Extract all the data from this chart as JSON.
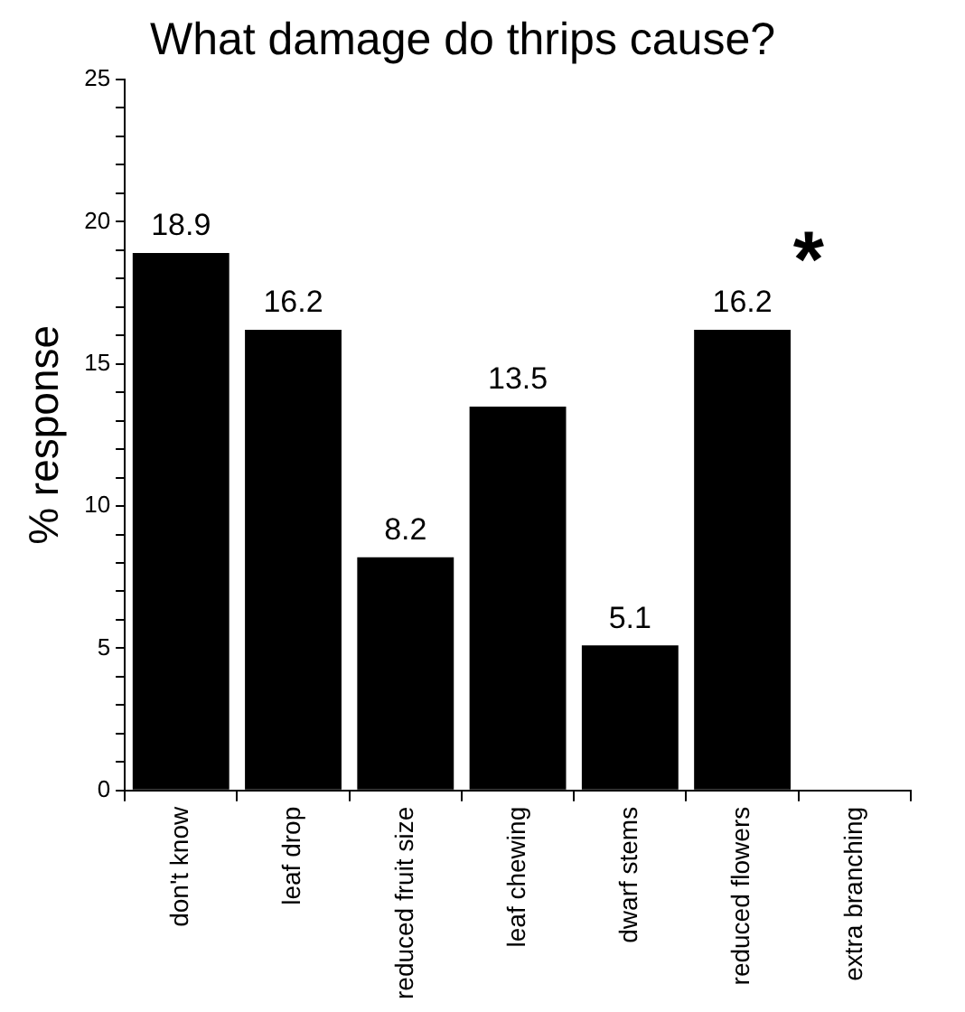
{
  "chart_data": {
    "type": "bar",
    "title": "What damage do thrips cause?",
    "ylabel": "% response",
    "categories": [
      "don't know",
      "leaf drop",
      "reduced fruit size",
      "leaf chewing",
      "dwarf stems",
      "reduced flowers",
      "extra branching"
    ],
    "values": [
      18.9,
      16.2,
      8.2,
      13.5,
      5.1,
      16.2,
      0
    ],
    "value_labels": [
      "18.9",
      "16.2",
      "8.2",
      "13.5",
      "5.1",
      "16.2",
      null
    ],
    "color": "#000000",
    "ylim": [
      0,
      25
    ],
    "yticks": [
      0,
      {
        "value": 1,
        "label": null
      },
      {
        "value": 2,
        "label": null
      },
      {
        "value": 3,
        "label": null
      },
      {
        "value": 4,
        "label": null
      },
      5,
      {
        "value": 6,
        "label": null
      },
      {
        "value": 7,
        "label": null
      },
      {
        "value": 8,
        "label": null
      },
      {
        "value": 9,
        "label": null
      },
      10,
      {
        "value": 11,
        "label": null
      },
      {
        "value": 12,
        "label": null
      },
      {
        "value": 13,
        "label": null
      },
      {
        "value": 14,
        "label": null
      },
      15,
      {
        "value": 16,
        "label": null
      },
      {
        "value": 17,
        "label": null
      },
      {
        "value": 18,
        "label": null
      },
      {
        "value": 19,
        "label": null
      },
      20,
      {
        "value": 21,
        "label": null
      },
      {
        "value": 22,
        "label": null
      },
      {
        "value": 23,
        "label": null
      },
      {
        "value": 24,
        "label": null
      },
      25
    ],
    "annotations": [
      "*"
    ],
    "grid": false,
    "legend": false
  }
}
